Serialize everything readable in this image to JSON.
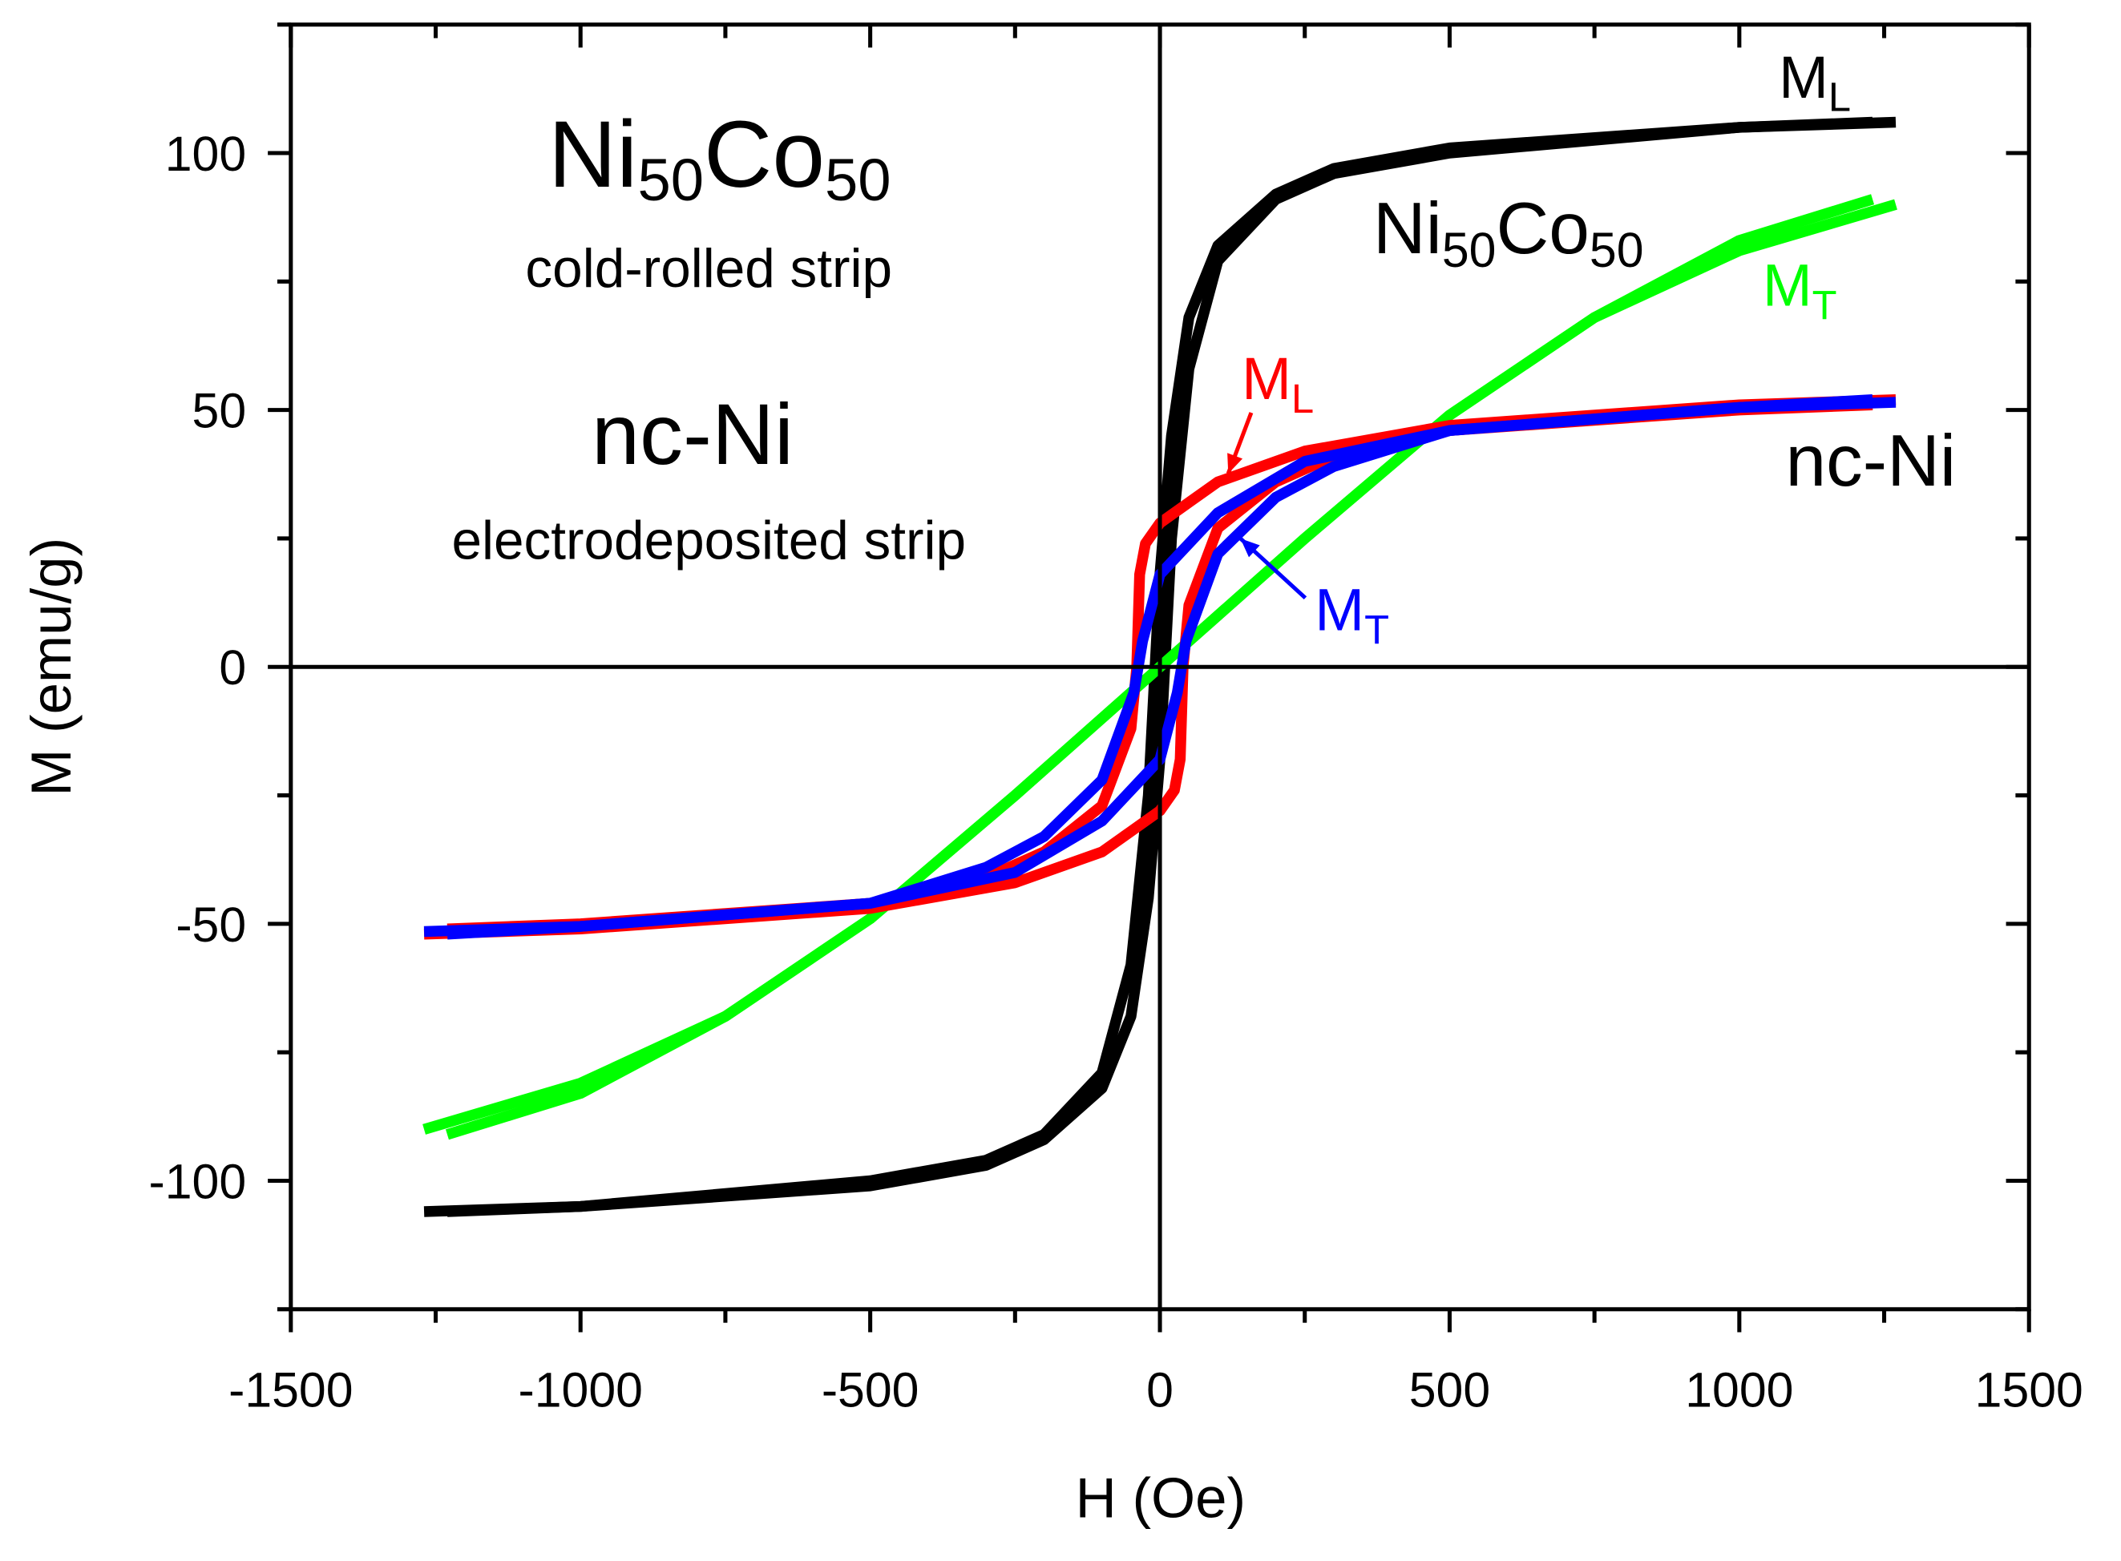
{
  "chart_data": {
    "type": "line",
    "title": "",
    "xlabel": "H (Oe)",
    "ylabel": "M (emu/g)",
    "xlim": [
      -1500,
      1500
    ],
    "ylim": [
      -125,
      125
    ],
    "xticks": [
      -1500,
      -1000,
      -500,
      0,
      500,
      1000,
      1500
    ],
    "yticks": [
      -100,
      -50,
      0,
      50,
      100
    ],
    "grid": false,
    "legend": "none",
    "series": [
      {
        "name": "Ni50Co50 M_L",
        "color": "#000000",
        "descending_branch": {
          "x": [
            1270,
            1000,
            500,
            300,
            200,
            100,
            50,
            20,
            0,
            -20,
            -50,
            -100,
            -200,
            -300,
            -500,
            -1000,
            -1230
          ],
          "y": [
            106,
            105,
            101,
            97,
            92,
            82,
            68,
            45,
            18,
            -25,
            -58,
            -79,
            -91,
            -96,
            -100,
            -105,
            -106
          ]
        },
        "ascending_branch_is_inverted_mirror": true
      },
      {
        "name": "Ni50Co50 M_T",
        "color": "#00ff00",
        "descending_branch": {
          "x": [
            1270,
            1000,
            750,
            500,
            250,
            0,
            -250,
            -500,
            -750,
            -1000,
            -1230
          ],
          "y": [
            90,
            81,
            68,
            49,
            25,
            0,
            -25,
            -49,
            -68,
            -83,
            -91
          ]
        },
        "ascending_branch_is_inverted_mirror": true
      },
      {
        "name": "nc-Ni M_L",
        "color": "#ff0000",
        "descending_branch": {
          "x": [
            1270,
            1000,
            500,
            250,
            100,
            50,
            0,
            -25,
            -35,
            -40,
            -50,
            -100,
            -200,
            -300,
            -500,
            -1000,
            -1230
          ],
          "y": [
            52,
            51,
            47,
            42,
            36,
            32,
            28,
            24,
            18,
            0,
            -12,
            -27,
            -36,
            -41,
            -46,
            -50,
            -51
          ]
        },
        "ascending_branch_is_inverted_mirror": true
      },
      {
        "name": "nc-Ni M_T",
        "color": "#0000ff",
        "descending_branch": {
          "x": [
            1270,
            1000,
            500,
            250,
            100,
            50,
            0,
            -30,
            -45,
            -100,
            -200,
            -300,
            -500,
            -1000,
            -1230
          ],
          "y": [
            51.5,
            50.5,
            46,
            40,
            30,
            24,
            18,
            5,
            -5,
            -22,
            -33,
            -39,
            -46,
            -50.5,
            -52
          ]
        },
        "ascending_branch_is_inverted_mirror": true
      }
    ],
    "annotations": [
      {
        "id": "ni-title",
        "main": "Ni",
        "sub": "50",
        "main2": "Co",
        "sub2": "50",
        "color": "#000000"
      },
      {
        "id": "ni-desc",
        "main": "cold-rolled strip",
        "color": "#000000"
      },
      {
        "id": "nc-title",
        "main": "nc-Ni",
        "color": "#000000"
      },
      {
        "id": "nc-desc",
        "main": "electrodeposited strip",
        "color": "#000000"
      },
      {
        "id": "black-ml",
        "main": "M",
        "sub": "L",
        "color": "#000000"
      },
      {
        "id": "curve-nico",
        "main": "Ni",
        "sub": "50",
        "main2": "Co",
        "sub2": "50",
        "color": "#000000"
      },
      {
        "id": "green-mt",
        "main": "M",
        "sub": "T",
        "color": "#00ff00"
      },
      {
        "id": "red-ml",
        "main": "M",
        "sub": "L",
        "color": "#ff0000"
      },
      {
        "id": "blue-mt",
        "main": "M",
        "sub": "T",
        "color": "#0000ff"
      },
      {
        "id": "curve-ncni",
        "main": "nc-Ni",
        "color": "#000000"
      }
    ]
  }
}
